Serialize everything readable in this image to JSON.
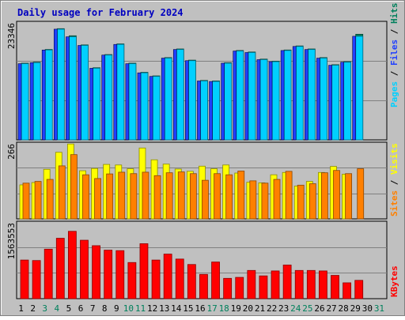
{
  "chart_data": [
    {
      "type": "bar",
      "title": "Daily usage for February 2024",
      "categories": [
        "1",
        "2",
        "3",
        "4",
        "5",
        "6",
        "7",
        "8",
        "9",
        "10",
        "11",
        "12",
        "13",
        "14",
        "15",
        "16",
        "17",
        "18",
        "19",
        "20",
        "21",
        "22",
        "23",
        "24",
        "25",
        "26",
        "27",
        "28",
        "29",
        "30",
        "31"
      ],
      "weekend_days": [
        "3",
        "4",
        "10",
        "11",
        "17",
        "18",
        "24",
        "25",
        "31"
      ],
      "ymax_label": "23346",
      "ylim": [
        0,
        23346
      ],
      "grid": true,
      "right_label_parts": [
        "Pages",
        " / ",
        "Files",
        " / ",
        "Hits"
      ],
      "series": [
        {
          "name": "Hits",
          "color": "#00805c",
          "values": [
            15100,
            15300,
            17800,
            21900,
            20500,
            18700,
            14200,
            16800,
            18900,
            15100,
            13300,
            12600,
            16200,
            17900,
            15700,
            11700,
            11600,
            15200,
            17600,
            17300,
            15900,
            15500,
            17700,
            18500,
            17900,
            16200,
            14800,
            15400,
            20800,
            null,
            null
          ]
        },
        {
          "name": "Files",
          "color": "#00d0ff",
          "values": [
            15000,
            15200,
            17700,
            21800,
            20300,
            18600,
            14100,
            16700,
            18800,
            15000,
            13200,
            12500,
            16100,
            17800,
            15600,
            11600,
            11500,
            15100,
            17500,
            17200,
            15800,
            15400,
            17600,
            18400,
            17800,
            16100,
            14700,
            15300,
            20400,
            null,
            null
          ]
        },
        {
          "name": "Pages",
          "color": "#2040ff",
          "values": [
            15000,
            15200,
            17700,
            21800,
            20300,
            18600,
            14100,
            16700,
            18800,
            15000,
            13200,
            12500,
            16100,
            17800,
            15600,
            11600,
            11500,
            15100,
            17500,
            17200,
            15800,
            15400,
            17600,
            18400,
            17800,
            16100,
            14700,
            15300,
            20400,
            null,
            null
          ]
        }
      ]
    },
    {
      "type": "bar",
      "categories": [
        "1",
        "2",
        "3",
        "4",
        "5",
        "6",
        "7",
        "8",
        "9",
        "10",
        "11",
        "12",
        "13",
        "14",
        "15",
        "16",
        "17",
        "18",
        "19",
        "20",
        "21",
        "22",
        "23",
        "24",
        "25",
        "26",
        "27",
        "28",
        "29",
        "30",
        "31"
      ],
      "ymax_label": "266",
      "ylim": [
        0,
        266
      ],
      "grid": true,
      "right_label_parts": [
        "Sites",
        " / ",
        "Visits"
      ],
      "series": [
        {
          "name": "Visits",
          "color": "#ffff00",
          "values": [
            118,
            126,
            172,
            231,
            260,
            167,
            175,
            189,
            187,
            174,
            246,
            205,
            190,
            173,
            165,
            183,
            174,
            187,
            159,
            127,
            125,
            153,
            161,
            114,
            130,
            161,
            182,
            155,
            null,
            null,
            null
          ]
        },
        {
          "name": "Sites",
          "color": "#ff8000",
          "values": [
            124,
            130,
            137,
            184,
            223,
            153,
            140,
            156,
            162,
            157,
            162,
            150,
            160,
            163,
            157,
            134,
            157,
            153,
            166,
            132,
            124,
            137,
            165,
            117,
            122,
            160,
            168,
            157,
            174,
            null,
            null
          ]
        }
      ]
    },
    {
      "type": "bar",
      "categories": [
        "1",
        "2",
        "3",
        "4",
        "5",
        "6",
        "7",
        "8",
        "9",
        "10",
        "11",
        "12",
        "13",
        "14",
        "15",
        "16",
        "17",
        "18",
        "19",
        "20",
        "21",
        "22",
        "23",
        "24",
        "25",
        "26",
        "27",
        "28",
        "29",
        "30",
        "31"
      ],
      "ymax_label": "1563553",
      "ylim": [
        0,
        1563553
      ],
      "grid": true,
      "right_label_parts": [
        "KBytes"
      ],
      "series": [
        {
          "name": "KBytes",
          "color": "#ff0000",
          "values": [
            780000,
            770000,
            1000000,
            1220000,
            1360000,
            1180000,
            1070000,
            980000,
            970000,
            730000,
            1110000,
            780000,
            900000,
            800000,
            690000,
            490000,
            740000,
            410000,
            430000,
            570000,
            460000,
            560000,
            680000,
            570000,
            570000,
            560000,
            470000,
            320000,
            370000,
            null,
            null
          ]
        }
      ]
    }
  ]
}
